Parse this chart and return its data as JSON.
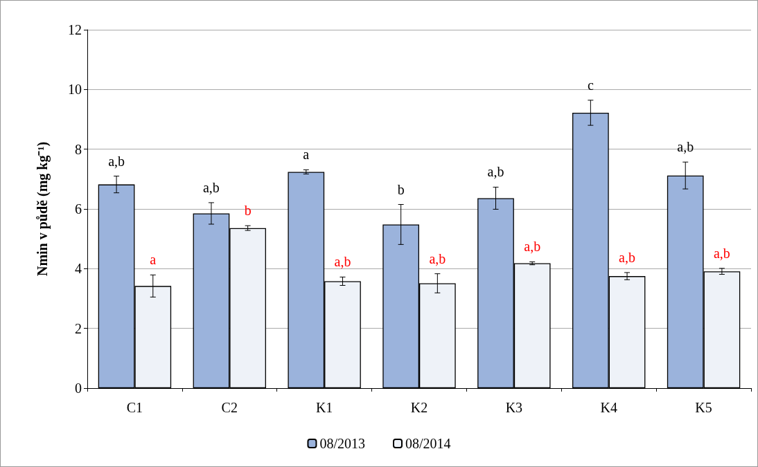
{
  "chart_data": {
    "type": "bar",
    "ylabel": "Nmin v půdě (mg kg⁻¹)",
    "categories": [
      "C1",
      "C2",
      "K1",
      "K2",
      "K3",
      "K4",
      "K5"
    ],
    "series": [
      {
        "name": "08/2013",
        "color": "#9bb3dc",
        "values": [
          6.82,
          5.85,
          7.24,
          5.48,
          6.36,
          9.22,
          7.12
        ],
        "errors": [
          0.28,
          0.36,
          0.07,
          0.67,
          0.37,
          0.42,
          0.45
        ],
        "value_labels": [
          "a,b",
          "a,b",
          "a",
          "b",
          "a,b",
          "c",
          "a,b"
        ]
      },
      {
        "name": "08/2014",
        "color": "#eef2f8",
        "values": [
          3.42,
          5.36,
          3.58,
          3.51,
          4.18,
          3.75,
          3.91
        ],
        "errors": [
          0.37,
          0.08,
          0.14,
          0.32,
          0.05,
          0.12,
          0.1
        ],
        "value_labels": [
          "a",
          "b",
          "a,b",
          "a,b",
          "a,b",
          "a,b",
          "a,b"
        ]
      }
    ],
    "ylim": [
      0,
      12
    ],
    "yticks": [
      0,
      2,
      4,
      6,
      8,
      10,
      12
    ],
    "grid": "y",
    "legend": "bottom"
  }
}
